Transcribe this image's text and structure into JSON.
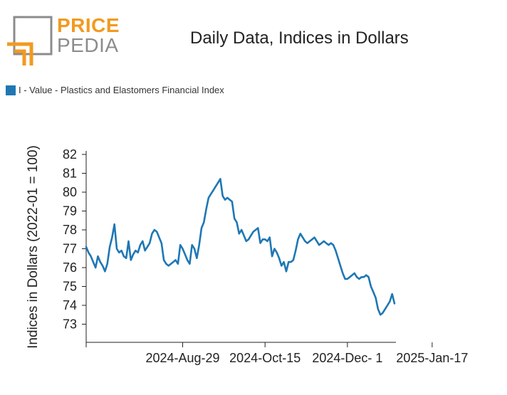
{
  "logo": {
    "word_top": "PRICE",
    "word_bottom": "PEDIA",
    "colors": {
      "orange": "#f29a1f",
      "gray": "#8c8c8c"
    }
  },
  "chart_data": {
    "type": "line",
    "title": "Daily Data, Indices in Dollars",
    "ylabel": "Indices in Dollars (2022-01 = 100)",
    "xlabel": "",
    "ylim": [
      72,
      82
    ],
    "yticks": [
      73,
      74,
      75,
      76,
      77,
      78,
      79,
      80,
      81,
      82
    ],
    "xticks": [
      "2024-Aug-29",
      "2024-Oct-15",
      "2024-Dec- 1",
      "2025-Jan-17"
    ],
    "xtick_index": [
      41,
      76,
      111,
      147
    ],
    "legend": {
      "position": "top-left"
    },
    "grid": false,
    "series": [
      {
        "name": "I - Value - Plastics and Elastomers Financial Index",
        "color": "#1f77b4",
        "values": [
          77.1,
          76.8,
          76.6,
          76.3,
          76.0,
          76.6,
          76.3,
          76.1,
          75.8,
          76.2,
          77.1,
          77.6,
          78.3,
          77.0,
          76.8,
          76.9,
          76.6,
          76.5,
          77.4,
          76.4,
          76.7,
          76.9,
          76.8,
          77.2,
          77.4,
          76.9,
          77.1,
          77.3,
          77.8,
          78.0,
          77.9,
          77.6,
          77.3,
          76.4,
          76.2,
          76.1,
          76.2,
          76.3,
          76.4,
          76.2,
          77.2,
          77.0,
          76.7,
          76.4,
          76.2,
          77.2,
          77.0,
          76.5,
          77.2,
          78.1,
          78.4,
          79.1,
          79.7,
          79.9,
          80.1,
          80.3,
          80.5,
          80.7,
          79.8,
          79.6,
          79.7,
          79.6,
          79.5,
          78.6,
          78.4,
          77.8,
          78.0,
          77.7,
          77.4,
          77.5,
          77.7,
          77.9,
          78.0,
          78.1,
          77.3,
          77.5,
          77.5,
          77.4,
          77.6,
          76.6,
          77.0,
          76.8,
          76.5,
          76.1,
          76.3,
          75.8,
          76.3,
          76.3,
          76.4,
          76.9,
          77.5,
          77.8,
          77.6,
          77.4,
          77.3,
          77.4,
          77.5,
          77.6,
          77.4,
          77.2,
          77.3,
          77.4,
          77.3,
          77.2,
          77.3,
          77.2,
          76.9,
          76.5,
          76.1,
          75.7,
          75.4,
          75.4,
          75.5,
          75.6,
          75.7,
          75.5,
          75.4,
          75.5,
          75.5,
          75.6,
          75.5,
          75.0,
          74.7,
          74.4,
          73.8,
          73.5,
          73.6,
          73.8,
          74.0,
          74.2,
          74.6,
          74.1
        ]
      }
    ]
  }
}
